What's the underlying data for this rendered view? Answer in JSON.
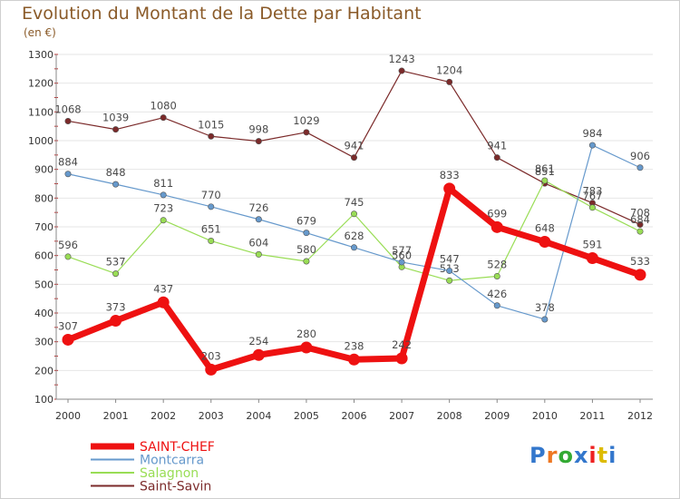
{
  "title": "Evolution du Montant de la Dette par Habitant",
  "subtitle": "(en €)",
  "logo": "Proxiti",
  "chart_data": {
    "type": "line",
    "title": "Evolution du Montant de la Dette par Habitant",
    "subtitle": "(en €)",
    "xlabel": "",
    "ylabel": "",
    "x": [
      "2000",
      "2001",
      "2002",
      "2003",
      "2004",
      "2005",
      "2006",
      "2007",
      "2008",
      "2009",
      "2010",
      "2011",
      "2012"
    ],
    "ylim": [
      100,
      1300
    ],
    "yticks": [
      "100",
      "200",
      "300",
      "400",
      "500",
      "600",
      "700",
      "800",
      "900",
      "1000",
      "1100",
      "1200",
      "1300"
    ],
    "grid": true,
    "legend_position": "bottom-left",
    "series": [
      {
        "name": "Saint-Savin",
        "color": "#7b2a2a",
        "values": [
          1068,
          1039,
          1080,
          1015,
          998,
          1029,
          941,
          1243,
          1204,
          941,
          851,
          783,
          708
        ]
      },
      {
        "name": "Salagnon",
        "color": "#99dd55",
        "values": [
          596,
          537,
          723,
          651,
          604,
          580,
          745,
          560,
          513,
          528,
          861,
          767,
          684
        ]
      },
      {
        "name": "Montcarra",
        "color": "#6699cc",
        "values": [
          884,
          848,
          811,
          770,
          726,
          679,
          628,
          577,
          547,
          426,
          378,
          984,
          906
        ]
      },
      {
        "name": "SAINT-CHEF",
        "color": "#ee1111",
        "values": [
          307,
          373,
          437,
          203,
          254,
          280,
          238,
          242,
          833,
          699,
          648,
          591,
          533
        ]
      }
    ]
  }
}
